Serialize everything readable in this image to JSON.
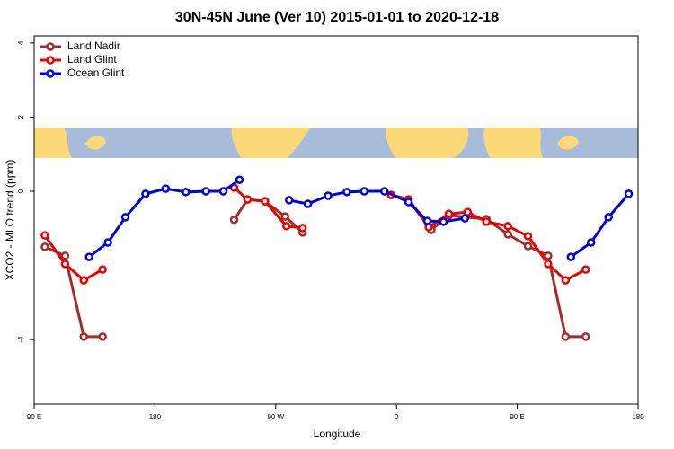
{
  "chart_data": {
    "type": "line",
    "title": "30N-45N June (Ver 10)   2015-01-01 to 2020-12-18",
    "x_label": "Longitude",
    "y_label": "XCO2 - MLO trend (ppm)",
    "xlim": [
      90,
      540
    ],
    "ylim": [
      -5.74,
      4.19
    ],
    "xticks": [
      {
        "value": 90,
        "label": "90 E"
      },
      {
        "value": 180,
        "label": "180"
      },
      {
        "value": 270,
        "label": "90 W"
      },
      {
        "value": 360,
        "label": "0"
      },
      {
        "value": 450,
        "label": "90 E"
      },
      {
        "value": 540,
        "label": "180"
      }
    ],
    "yticks": [
      -4,
      0,
      2,
      4
    ],
    "legend": "top-left",
    "series": [
      {
        "name": "Land Nadir",
        "color": "#a52a2a",
        "x": [
          98,
          113,
          127,
          141,
          null,
          239,
          249,
          262,
          277,
          290,
          null,
          356,
          369,
          386,
          399,
          427,
          443,
          458,
          473,
          486,
          501
        ],
        "values": [
          -1.5,
          -1.74,
          -3.92,
          -3.92,
          null,
          -0.77,
          -0.22,
          -0.27,
          -0.68,
          -1.11,
          null,
          -0.1,
          -0.22,
          -1.04,
          -0.65,
          -0.75,
          -1.16,
          -1.48,
          -1.74,
          -3.92,
          -3.92
        ]
      },
      {
        "name": "Land Glint",
        "color": "#ee0000",
        "x": [
          98,
          113,
          127,
          141,
          null,
          239,
          249,
          262,
          278,
          290,
          null,
          356,
          369,
          384,
          399,
          413,
          427,
          443,
          458,
          473,
          486,
          501
        ],
        "values": [
          -1.19,
          -1.96,
          -2.4,
          -2.11,
          null,
          0.1,
          -0.22,
          -0.27,
          -0.94,
          -0.99,
          null,
          -0.1,
          -0.22,
          -0.97,
          -0.61,
          -0.56,
          -0.82,
          -0.94,
          -1.21,
          -1.96,
          -2.4,
          -2.11
        ]
      },
      {
        "name": "Ocean Glint",
        "color": "#0000dd",
        "x": [
          131,
          145,
          158,
          173,
          188,
          203,
          218,
          231,
          243,
          null,
          280,
          294,
          309,
          323,
          336,
          351,
          369,
          383,
          395,
          411,
          null,
          490,
          505,
          518,
          533
        ],
        "values": [
          -1.77,
          -1.38,
          -0.7,
          -0.07,
          0.07,
          -0.02,
          0,
          0,
          0.31,
          null,
          -0.24,
          -0.34,
          -0.12,
          -0.02,
          0,
          0,
          -0.29,
          -0.8,
          -0.82,
          -0.73,
          null,
          -1.77,
          -1.38,
          -0.7,
          -0.07
        ]
      }
    ]
  }
}
